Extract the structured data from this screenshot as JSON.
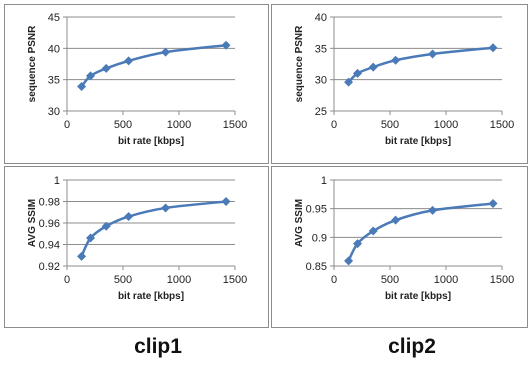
{
  "colors": {
    "series": "#4a7ab8",
    "axis": "#8c8c8c",
    "grid": "#8c8c8c"
  },
  "clip_labels": [
    "clip1",
    "clip2"
  ],
  "chart_data": [
    {
      "type": "line",
      "xlabel": "bit rate [kbps]",
      "ylabel": "sequence PSNR",
      "xlim": [
        0,
        1500
      ],
      "ylim": [
        30,
        45
      ],
      "xticks": [
        0,
        500,
        1000,
        1500
      ],
      "yticks": [
        30,
        35,
        40,
        45
      ],
      "ytick_labels": [
        "30",
        "35",
        "40",
        "45"
      ],
      "gridlines": [
        35,
        40,
        45
      ],
      "x": [
        130,
        210,
        350,
        550,
        880,
        1420
      ],
      "y": [
        33.9,
        35.6,
        36.8,
        38.0,
        39.4,
        40.5
      ]
    },
    {
      "type": "line",
      "xlabel": "bit rate [kbps]",
      "ylabel": "sequence PSNR",
      "xlim": [
        0,
        1500
      ],
      "ylim": [
        25,
        40
      ],
      "xticks": [
        0,
        500,
        1000,
        1500
      ],
      "yticks": [
        25,
        30,
        35,
        40
      ],
      "ytick_labels": [
        "25",
        "30",
        "35",
        "40"
      ],
      "gridlines": [
        30,
        35,
        40
      ],
      "x": [
        130,
        210,
        350,
        550,
        880,
        1420
      ],
      "y": [
        29.6,
        31.0,
        32.0,
        33.1,
        34.1,
        35.1
      ]
    },
    {
      "type": "line",
      "xlabel": "bit rate [kbps]",
      "ylabel": "AVG SSIM",
      "xlim": [
        0,
        1500
      ],
      "ylim": [
        0.92,
        1.0
      ],
      "xticks": [
        0,
        500,
        1000,
        1500
      ],
      "yticks": [
        0.92,
        0.94,
        0.96,
        0.98,
        1.0
      ],
      "ytick_labels": [
        "0.92",
        "0.94",
        "0.96",
        "0.98",
        "1"
      ],
      "gridlines": [
        0.94,
        0.96,
        0.98,
        1.0
      ],
      "x": [
        130,
        210,
        350,
        550,
        880,
        1420
      ],
      "y": [
        0.929,
        0.946,
        0.957,
        0.966,
        0.974,
        0.98
      ]
    },
    {
      "type": "line",
      "xlabel": "bit rate [kbps]",
      "ylabel": "AVG SSIM",
      "xlim": [
        0,
        1500
      ],
      "ylim": [
        0.85,
        1.0
      ],
      "xticks": [
        0,
        500,
        1000,
        1500
      ],
      "yticks": [
        0.85,
        0.9,
        0.95,
        1.0
      ],
      "ytick_labels": [
        "0.85",
        "0.9",
        "0.95",
        "1"
      ],
      "gridlines": [
        0.9,
        0.95,
        1.0
      ],
      "x": [
        130,
        210,
        350,
        550,
        880,
        1420
      ],
      "y": [
        0.859,
        0.889,
        0.911,
        0.93,
        0.947,
        0.959
      ]
    }
  ]
}
